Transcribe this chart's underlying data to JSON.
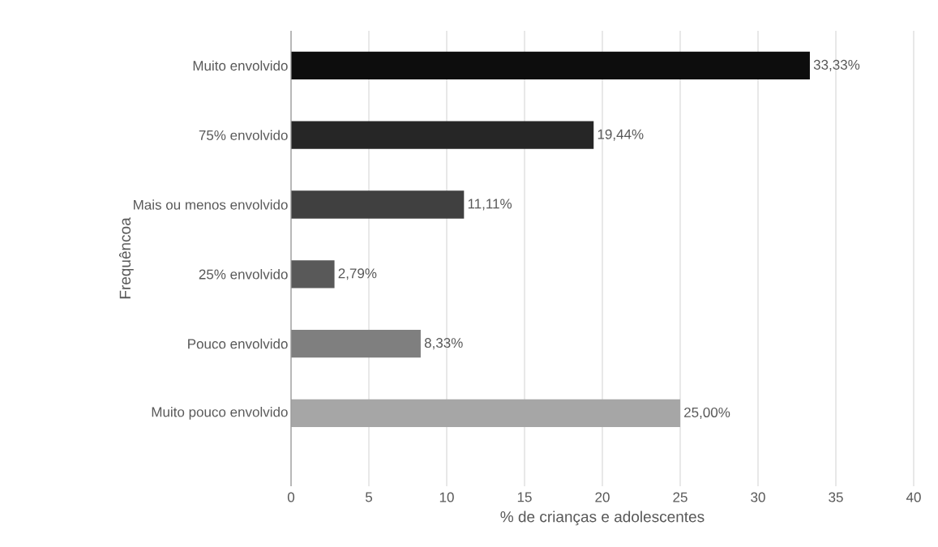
{
  "chart_data": {
    "type": "bar",
    "orientation": "horizontal",
    "xlabel": "% de crianças e adolescentes",
    "ylabel": "Frequêncoa",
    "categories": [
      "Muito envolvido",
      "75% envolvido",
      "Mais ou menos envolvido",
      "25% envolvido",
      "Pouco envolvido",
      "Muito pouco envolvido"
    ],
    "values": [
      33.33,
      19.44,
      11.11,
      2.79,
      8.33,
      25.0
    ],
    "value_labels": [
      "33,33%",
      "19,44%",
      "11,11%",
      "2,79%",
      "8,33%",
      "25,00%"
    ],
    "colors": [
      "#0d0d0d",
      "#262626",
      "#404040",
      "#595959",
      "#7f7f7f",
      "#a6a6a6"
    ],
    "xlim": [
      0,
      40
    ],
    "xticks": [
      0,
      5,
      10,
      15,
      20,
      25,
      30,
      35,
      40
    ],
    "grid": "x"
  }
}
